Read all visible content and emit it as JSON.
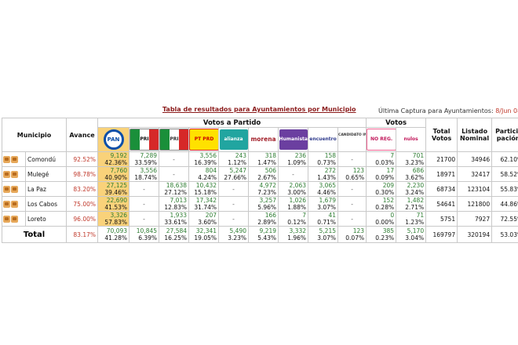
{
  "title": "Tabla de resultados para Ayuntamientos por Municipio",
  "capture_label": "Última Captura para Ayuntamientos:",
  "capture_time": "8/Jun 08:43:35",
  "headers": {
    "municipio": "Municipio",
    "avance": "Avance",
    "votos_partido": "Votos a Partido",
    "votos": "Votos",
    "total_votos": "Total Votos",
    "listado_nominal": "Listado Nominal",
    "participacion": "Partici_ pación"
  },
  "parties": [
    {
      "key": "pan",
      "label": "PAN"
    },
    {
      "key": "pri",
      "label": "PRI"
    },
    {
      "key": "prd2",
      "label": "PRI"
    },
    {
      "key": "pt",
      "label": "PT PRD"
    },
    {
      "key": "alz",
      "label": "alianza"
    },
    {
      "key": "mor",
      "label": "morena"
    },
    {
      "key": "hum",
      "label": "Humanista"
    },
    {
      "key": "enc",
      "label": "encuentro"
    },
    {
      "key": "ind",
      "label": "CANDIDATO INDEPENDIENTE"
    }
  ],
  "vote_types": [
    {
      "key": "noreg",
      "label": "NO REG."
    },
    {
      "key": "nulos",
      "label": "nulos"
    }
  ],
  "rows": [
    {
      "municipio": "Comondú",
      "avance": "92.52%",
      "cells": [
        [
          "9,192",
          "42.36%"
        ],
        [
          "7,289",
          "33.59%"
        ],
        [
          "-",
          ""
        ],
        [
          "3,556",
          "16.39%"
        ],
        [
          "243",
          "1.12%"
        ],
        [
          "318",
          "1.47%"
        ],
        [
          "236",
          "1.09%"
        ],
        [
          "158",
          "0.73%"
        ],
        [
          "-",
          ""
        ],
        [
          "7",
          "0.03%"
        ],
        [
          "701",
          "3.23%"
        ]
      ],
      "total": "21700",
      "listado": "34946",
      "part": "62.10%"
    },
    {
      "municipio": "Mulegé",
      "avance": "98.78%",
      "cells": [
        [
          "7,760",
          "40.90%"
        ],
        [
          "3,556",
          "18.74%"
        ],
        [
          "-",
          ""
        ],
        [
          "804",
          "4.24%"
        ],
        [
          "5,247",
          "27.66%"
        ],
        [
          "506",
          "2.67%"
        ],
        [
          "-",
          ""
        ],
        [
          "272",
          "1.43%"
        ],
        [
          "123",
          "0.65%"
        ],
        [
          "17",
          "0.09%"
        ],
        [
          "686",
          "3.62%"
        ]
      ],
      "total": "18971",
      "listado": "32417",
      "part": "58.52%"
    },
    {
      "municipio": "La Paz",
      "avance": "83.20%",
      "cells": [
        [
          "27,125",
          "39.46%"
        ],
        [
          "-",
          ""
        ],
        [
          "18,638",
          "27.12%"
        ],
        [
          "10,432",
          "15.18%"
        ],
        [
          "-",
          ""
        ],
        [
          "4,972",
          "7.23%"
        ],
        [
          "2,063",
          "3.00%"
        ],
        [
          "3,065",
          "4.46%"
        ],
        [
          "-",
          ""
        ],
        [
          "209",
          "0.30%"
        ],
        [
          "2,230",
          "3.24%"
        ]
      ],
      "total": "68734",
      "listado": "123104",
      "part": "55.83%"
    },
    {
      "municipio": "Los Cabos",
      "avance": "75.00%",
      "cells": [
        [
          "22,690",
          "41.53%"
        ],
        [
          "-",
          ""
        ],
        [
          "7,013",
          "12.83%"
        ],
        [
          "17,342",
          "31.74%"
        ],
        [
          "-",
          ""
        ],
        [
          "3,257",
          "5.96%"
        ],
        [
          "1,026",
          "1.88%"
        ],
        [
          "1,679",
          "3.07%"
        ],
        [
          "-",
          ""
        ],
        [
          "152",
          "0.28%"
        ],
        [
          "1,482",
          "2.71%"
        ]
      ],
      "total": "54641",
      "listado": "121800",
      "part": "44.86%"
    },
    {
      "municipio": "Loreto",
      "avance": "96.00%",
      "cells": [
        [
          "3,326",
          "57.83%"
        ],
        [
          "-",
          ""
        ],
        [
          "1,933",
          "33.61%"
        ],
        [
          "207",
          "3.60%"
        ],
        [
          "-",
          ""
        ],
        [
          "166",
          "2.89%"
        ],
        [
          "7",
          "0.12%"
        ],
        [
          "41",
          "0.71%"
        ],
        [
          "-",
          ""
        ],
        [
          "0",
          "0.00%"
        ],
        [
          "71",
          "1.23%"
        ]
      ],
      "total": "5751",
      "listado": "7927",
      "part": "72.55%"
    }
  ],
  "totals": {
    "label": "Total",
    "avance": "83.17%",
    "cells": [
      [
        "70,093",
        "41.28%"
      ],
      [
        "10,845",
        "6.39%"
      ],
      [
        "27,584",
        "16.25%"
      ],
      [
        "32,341",
        "19.05%"
      ],
      [
        "5,490",
        "3.23%"
      ],
      [
        "9,219",
        "5.43%"
      ],
      [
        "3,332",
        "1.96%"
      ],
      [
        "5,215",
        "3.07%"
      ],
      [
        "123",
        "0.07%"
      ],
      [
        "385",
        "0.23%"
      ],
      [
        "5,170",
        "3.04%"
      ]
    ],
    "total": "169797",
    "listado": "320194",
    "part": "53.03%"
  },
  "colors": {
    "highlight": "#f9d27a",
    "value_green": "#2e7d32",
    "title_red": "#8b1a1a"
  }
}
